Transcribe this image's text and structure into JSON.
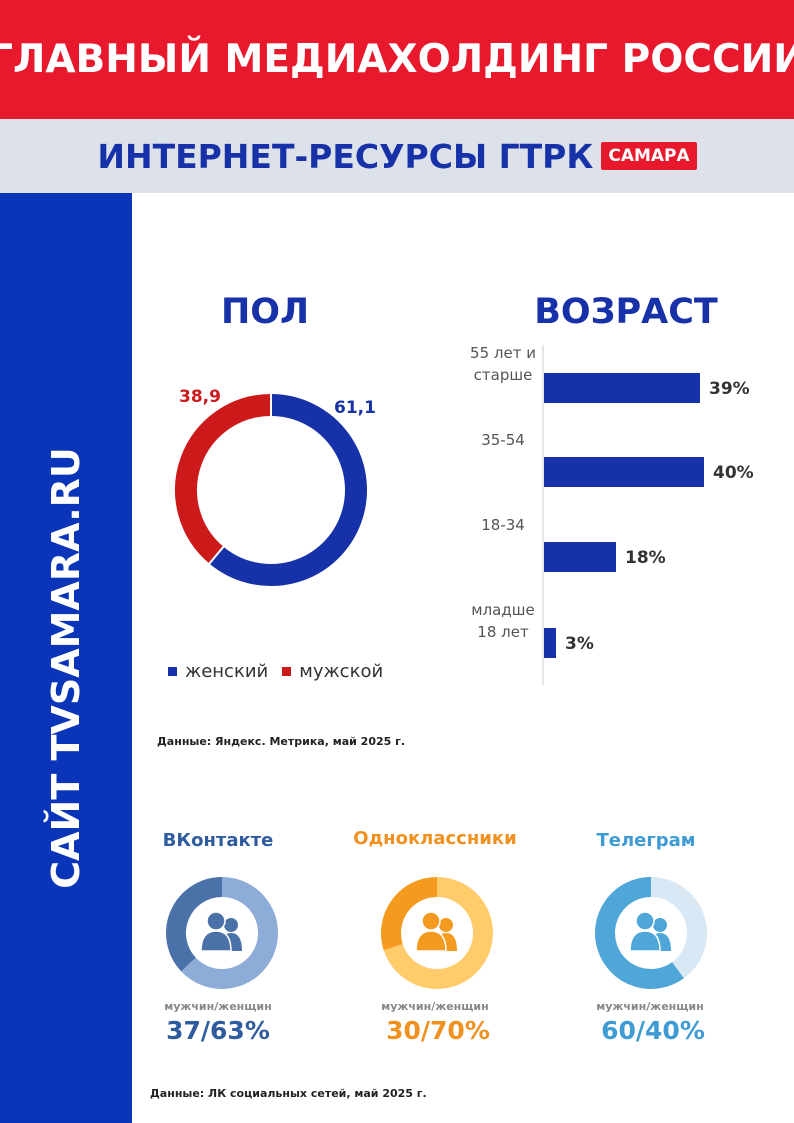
{
  "header": {
    "title": "ГЛАВНЫЙ МЕДИАХОЛДИНГ РОССИИ",
    "subtitle": "ИНТЕРНЕТ-РЕСУРСЫ  ГТРК",
    "badge": "САМАРА"
  },
  "sidebar": {
    "text": "САЙТ TVSAMARA.RU"
  },
  "colors": {
    "red": "#e8192c",
    "blue": "#0a35b8",
    "female": "#1732a8",
    "male": "#cc1a1a",
    "vk_dark": "#4a72a8",
    "vk_light": "#8eacd8",
    "vk_text": "#2e5c9e",
    "ok_dark": "#f39a1f",
    "ok_light": "#ffcb6b",
    "ok_text": "#f0901e",
    "tg_dark": "#4ea6d9",
    "tg_light": "#d8e9f5",
    "tg_text": "#3e9bd4"
  },
  "chart_data": [
    {
      "type": "pie",
      "title": "ПОЛ",
      "categories": [
        "женский",
        "мужской"
      ],
      "values": [
        61.1,
        38.9
      ],
      "value_labels": [
        "61,1",
        "38,9"
      ],
      "legend": {
        "placement": "bottom",
        "entries": [
          "женский",
          "мужской"
        ]
      }
    },
    {
      "type": "bar",
      "title": "ВОЗРАСТ",
      "orientation": "horizontal",
      "categories": [
        "55 лет и старше",
        "35-54",
        "18-34",
        "младше 18 лет"
      ],
      "category_lines": [
        [
          "55 лет и",
          "старше"
        ],
        [
          "35-54"
        ],
        [
          "18-34"
        ],
        [
          "младше",
          "18 лет"
        ]
      ],
      "values": [
        39,
        40,
        18,
        3
      ],
      "value_labels": [
        "39%",
        "40%",
        "18%",
        "3%"
      ]
    },
    {
      "type": "pie",
      "title": "ВКонтакте",
      "categories": [
        "мужчин",
        "женщин"
      ],
      "values": [
        37,
        63
      ]
    },
    {
      "type": "pie",
      "title": "Одноклассники",
      "categories": [
        "мужчин",
        "женщин"
      ],
      "values": [
        30,
        70
      ]
    },
    {
      "type": "pie",
      "title": "Телеграм",
      "categories": [
        "мужчин",
        "женщин"
      ],
      "values": [
        60,
        40
      ]
    }
  ],
  "sources": {
    "metrika": "Данные: Яндекс. Метрика,  май 2025 г.",
    "social": "Данные: ЛК социальных сетей, май 2025 г."
  },
  "socials": [
    {
      "name": "ВКонтакте",
      "sub": "мужчин/женщин",
      "value": "37/63%"
    },
    {
      "name": "Одноклассники",
      "sub": "мужчин/женщин",
      "value": "30/70%"
    },
    {
      "name": "Телеграм",
      "sub": "мужчин/женщин",
      "value": "60/40%"
    }
  ]
}
